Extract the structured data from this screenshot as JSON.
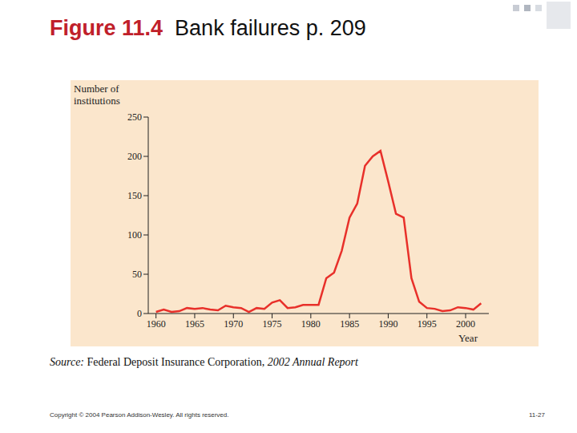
{
  "chart_data": {
    "type": "line",
    "figure_label": "Figure 11.4",
    "title": "Bank failures p. 209",
    "y_label": "Number of institutions",
    "x_label": "Year",
    "x": [
      1960,
      1961,
      1962,
      1963,
      1964,
      1965,
      1966,
      1967,
      1968,
      1969,
      1970,
      1971,
      1972,
      1973,
      1974,
      1975,
      1976,
      1977,
      1978,
      1979,
      1980,
      1981,
      1982,
      1983,
      1984,
      1985,
      1986,
      1987,
      1988,
      1989,
      1990,
      1991,
      1992,
      1993,
      1994,
      1995,
      1996,
      1997,
      1998,
      1999,
      2000,
      2001,
      2002
    ],
    "values": [
      2,
      5,
      2,
      3,
      7,
      6,
      7,
      5,
      4,
      10,
      8,
      7,
      2,
      7,
      6,
      14,
      17,
      7,
      8,
      11,
      11,
      11,
      45,
      52,
      80,
      122,
      140,
      188,
      200,
      207,
      168,
      127,
      122,
      45,
      15,
      7,
      6,
      3,
      4,
      8,
      7,
      5,
      13
    ],
    "color": "#e8302a",
    "xlim": [
      1959,
      2003
    ],
    "xticks": [
      1960,
      1965,
      1970,
      1975,
      1980,
      1985,
      1990,
      1995,
      2000
    ],
    "ylim": [
      0,
      250
    ],
    "yticks": [
      0,
      50,
      100,
      150,
      200,
      250
    ],
    "grid": false,
    "source": {
      "label": "Source:",
      "text": "Federal Deposit Insurance Corporation,",
      "publication": "2002 Annual Report"
    },
    "footer": "Copyright © 2004 Pearson Addison-Wesley. All rights reserved.",
    "page": "11-27"
  }
}
